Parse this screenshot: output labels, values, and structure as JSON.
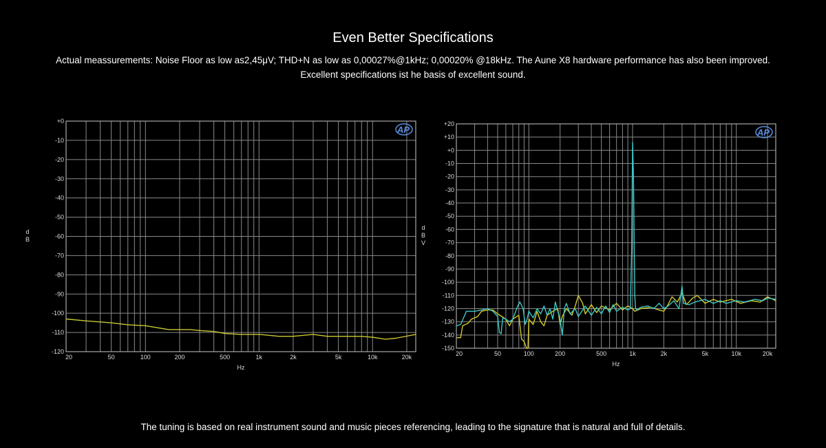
{
  "header": {
    "title": "Even Better Specifications",
    "line1": "Actual meassurements: Noise Floor as low as2,45μV; THD+N as low as 0,00027%@1kHz; 0,00020% @18kHz. The Aune X8 hardware performance has also been improved.",
    "line2": "Excellent specifications ist he basis of excellent sound."
  },
  "footer": "The tuning is based on real instrument sound and music pieces referencing, leading to the signature that is natural and full of details.",
  "chart_data": [
    {
      "type": "line",
      "title": "",
      "xlabel": "Hz",
      "ylabel": "dB",
      "xscale": "log",
      "xlim": [
        20,
        24000
      ],
      "ylim": [
        -120,
        0
      ],
      "grid": true,
      "logo": "AP",
      "xticks": [
        "20",
        "50",
        "100",
        "200",
        "500",
        "1k",
        "2k",
        "5k",
        "10k",
        "20k"
      ],
      "xtick_values": [
        20,
        50,
        100,
        200,
        500,
        1000,
        2000,
        5000,
        10000,
        20000
      ],
      "yticks": [
        "+0",
        "-10",
        "-20",
        "-30",
        "-40",
        "-50",
        "-60",
        "-70",
        "-80",
        "-90",
        "-100",
        "-110",
        "-120"
      ],
      "series": [
        {
          "name": "ch1",
          "color": "#c8c832",
          "points": [
            [
              20,
              -103
            ],
            [
              30,
              -104
            ],
            [
              50,
              -105
            ],
            [
              70,
              -106
            ],
            [
              100,
              -106.5
            ],
            [
              160,
              -108.5
            ],
            [
              250,
              -108.5
            ],
            [
              300,
              -109
            ],
            [
              400,
              -109.5
            ],
            [
              500,
              -110.5
            ],
            [
              700,
              -111
            ],
            [
              1000,
              -111
            ],
            [
              1500,
              -112
            ],
            [
              2000,
              -112
            ],
            [
              3000,
              -111
            ],
            [
              4000,
              -112
            ],
            [
              8000,
              -112
            ],
            [
              10000,
              -112.5
            ],
            [
              13000,
              -113.5
            ],
            [
              16000,
              -113
            ],
            [
              24000,
              -111
            ]
          ]
        }
      ]
    },
    {
      "type": "line",
      "title": "",
      "xlabel": "Hz",
      "ylabel": "dBV",
      "xscale": "log",
      "xlim": [
        20,
        24000
      ],
      "ylim": [
        -150,
        20
      ],
      "grid": true,
      "logo": "AP",
      "xticks": [
        "20",
        "50",
        "100",
        "200",
        "500",
        "1k",
        "2k",
        "5k",
        "10k",
        "20k"
      ],
      "xtick_values": [
        20,
        50,
        100,
        200,
        500,
        1000,
        2000,
        5000,
        10000,
        20000
      ],
      "yticks": [
        "+20",
        "+10",
        "+0",
        "-10",
        "-20",
        "-30",
        "-40",
        "-50",
        "-60",
        "-70",
        "-80",
        "-90",
        "-100",
        "-110",
        "-120",
        "-130",
        "-140",
        "-150"
      ],
      "series": [
        {
          "name": "yellow",
          "color": "#d4c828",
          "points": [
            [
              20,
              -142
            ],
            [
              22,
              -142
            ],
            [
              23,
              -133
            ],
            [
              26,
              -131
            ],
            [
              28,
              -128
            ],
            [
              32,
              -126
            ],
            [
              35,
              -122
            ],
            [
              40,
              -121
            ],
            [
              45,
              -121
            ],
            [
              50,
              -124
            ],
            [
              55,
              -126
            ],
            [
              60,
              -128
            ],
            [
              65,
              -133
            ],
            [
              70,
              -128
            ],
            [
              80,
              -125
            ],
            [
              85,
              -143
            ],
            [
              90,
              -145
            ],
            [
              95,
              -150
            ],
            [
              98,
              -155
            ],
            [
              100,
              -128
            ],
            [
              110,
              -132
            ],
            [
              120,
              -122
            ],
            [
              130,
              -130
            ],
            [
              140,
              -133
            ],
            [
              150,
              -125
            ],
            [
              170,
              -122
            ],
            [
              190,
              -120
            ],
            [
              200,
              -132
            ],
            [
              210,
              -126
            ],
            [
              230,
              -120
            ],
            [
              260,
              -125
            ],
            [
              280,
              -118
            ],
            [
              300,
              -110
            ],
            [
              330,
              -116
            ],
            [
              350,
              -124
            ],
            [
              400,
              -117
            ],
            [
              450,
              -123
            ],
            [
              500,
              -118
            ],
            [
              600,
              -121
            ],
            [
              700,
              -116
            ],
            [
              800,
              -121
            ],
            [
              900,
              -118
            ],
            [
              1000,
              -120
            ],
            [
              1050,
              -122
            ],
            [
              1200,
              -120
            ],
            [
              1500,
              -119
            ],
            [
              1800,
              -121
            ],
            [
              2000,
              -122
            ],
            [
              2200,
              -117
            ],
            [
              2400,
              -111
            ],
            [
              2700,
              -115
            ],
            [
              3000,
              -108
            ],
            [
              3300,
              -117
            ],
            [
              3800,
              -112
            ],
            [
              4200,
              -110
            ],
            [
              5000,
              -116
            ],
            [
              6000,
              -113
            ],
            [
              7000,
              -115
            ],
            [
              9000,
              -113
            ],
            [
              11000,
              -116
            ],
            [
              14000,
              -114
            ],
            [
              17000,
              -115
            ],
            [
              20000,
              -111
            ],
            [
              24000,
              -114
            ]
          ]
        },
        {
          "name": "cyan",
          "color": "#3cc8c8",
          "points": [
            [
              20,
              -133
            ],
            [
              22,
              -132
            ],
            [
              25,
              -122
            ],
            [
              30,
              -122
            ],
            [
              35,
              -121
            ],
            [
              40,
              -120
            ],
            [
              45,
              -122
            ],
            [
              50,
              -126
            ],
            [
              52,
              -138
            ],
            [
              54,
              -139
            ],
            [
              56,
              -127
            ],
            [
              60,
              -128
            ],
            [
              65,
              -130
            ],
            [
              70,
              -128
            ],
            [
              78,
              -118
            ],
            [
              82,
              -115
            ],
            [
              88,
              -120
            ],
            [
              92,
              -132
            ],
            [
              96,
              -128
            ],
            [
              100,
              -122
            ],
            [
              110,
              -127
            ],
            [
              120,
              -120
            ],
            [
              130,
              -124
            ],
            [
              140,
              -118
            ],
            [
              150,
              -125
            ],
            [
              160,
              -120
            ],
            [
              170,
              -128
            ],
            [
              180,
              -115
            ],
            [
              190,
              -122
            ],
            [
              200,
              -128
            ],
            [
              210,
              -140
            ],
            [
              220,
              -120
            ],
            [
              230,
              -116
            ],
            [
              250,
              -124
            ],
            [
              280,
              -120
            ],
            [
              300,
              -126
            ],
            [
              350,
              -118
            ],
            [
              400,
              -125
            ],
            [
              450,
              -119
            ],
            [
              500,
              -124
            ],
            [
              550,
              -118
            ],
            [
              600,
              -123
            ],
            [
              650,
              -117
            ],
            [
              700,
              -122
            ],
            [
              800,
              -119
            ],
            [
              900,
              -121
            ],
            [
              950,
              -120
            ],
            [
              980,
              -75
            ],
            [
              1000,
              6
            ],
            [
              1020,
              -20
            ],
            [
              1050,
              -110
            ],
            [
              1070,
              -120
            ],
            [
              1100,
              -121
            ],
            [
              1200,
              -119
            ],
            [
              1400,
              -118
            ],
            [
              1600,
              -120
            ],
            [
              1800,
              -116
            ],
            [
              2000,
              -120
            ],
            [
              2200,
              -118
            ],
            [
              2500,
              -114
            ],
            [
              2800,
              -120
            ],
            [
              3000,
              -103
            ],
            [
              3100,
              -116
            ],
            [
              3500,
              -117
            ],
            [
              4000,
              -115
            ],
            [
              5000,
              -113
            ],
            [
              6000,
              -116
            ],
            [
              7000,
              -114
            ],
            [
              8000,
              -116
            ],
            [
              10000,
              -114
            ],
            [
              12000,
              -115
            ],
            [
              15000,
              -113
            ],
            [
              18000,
              -114
            ],
            [
              20000,
              -112
            ],
            [
              24000,
              -113
            ]
          ]
        }
      ]
    }
  ]
}
